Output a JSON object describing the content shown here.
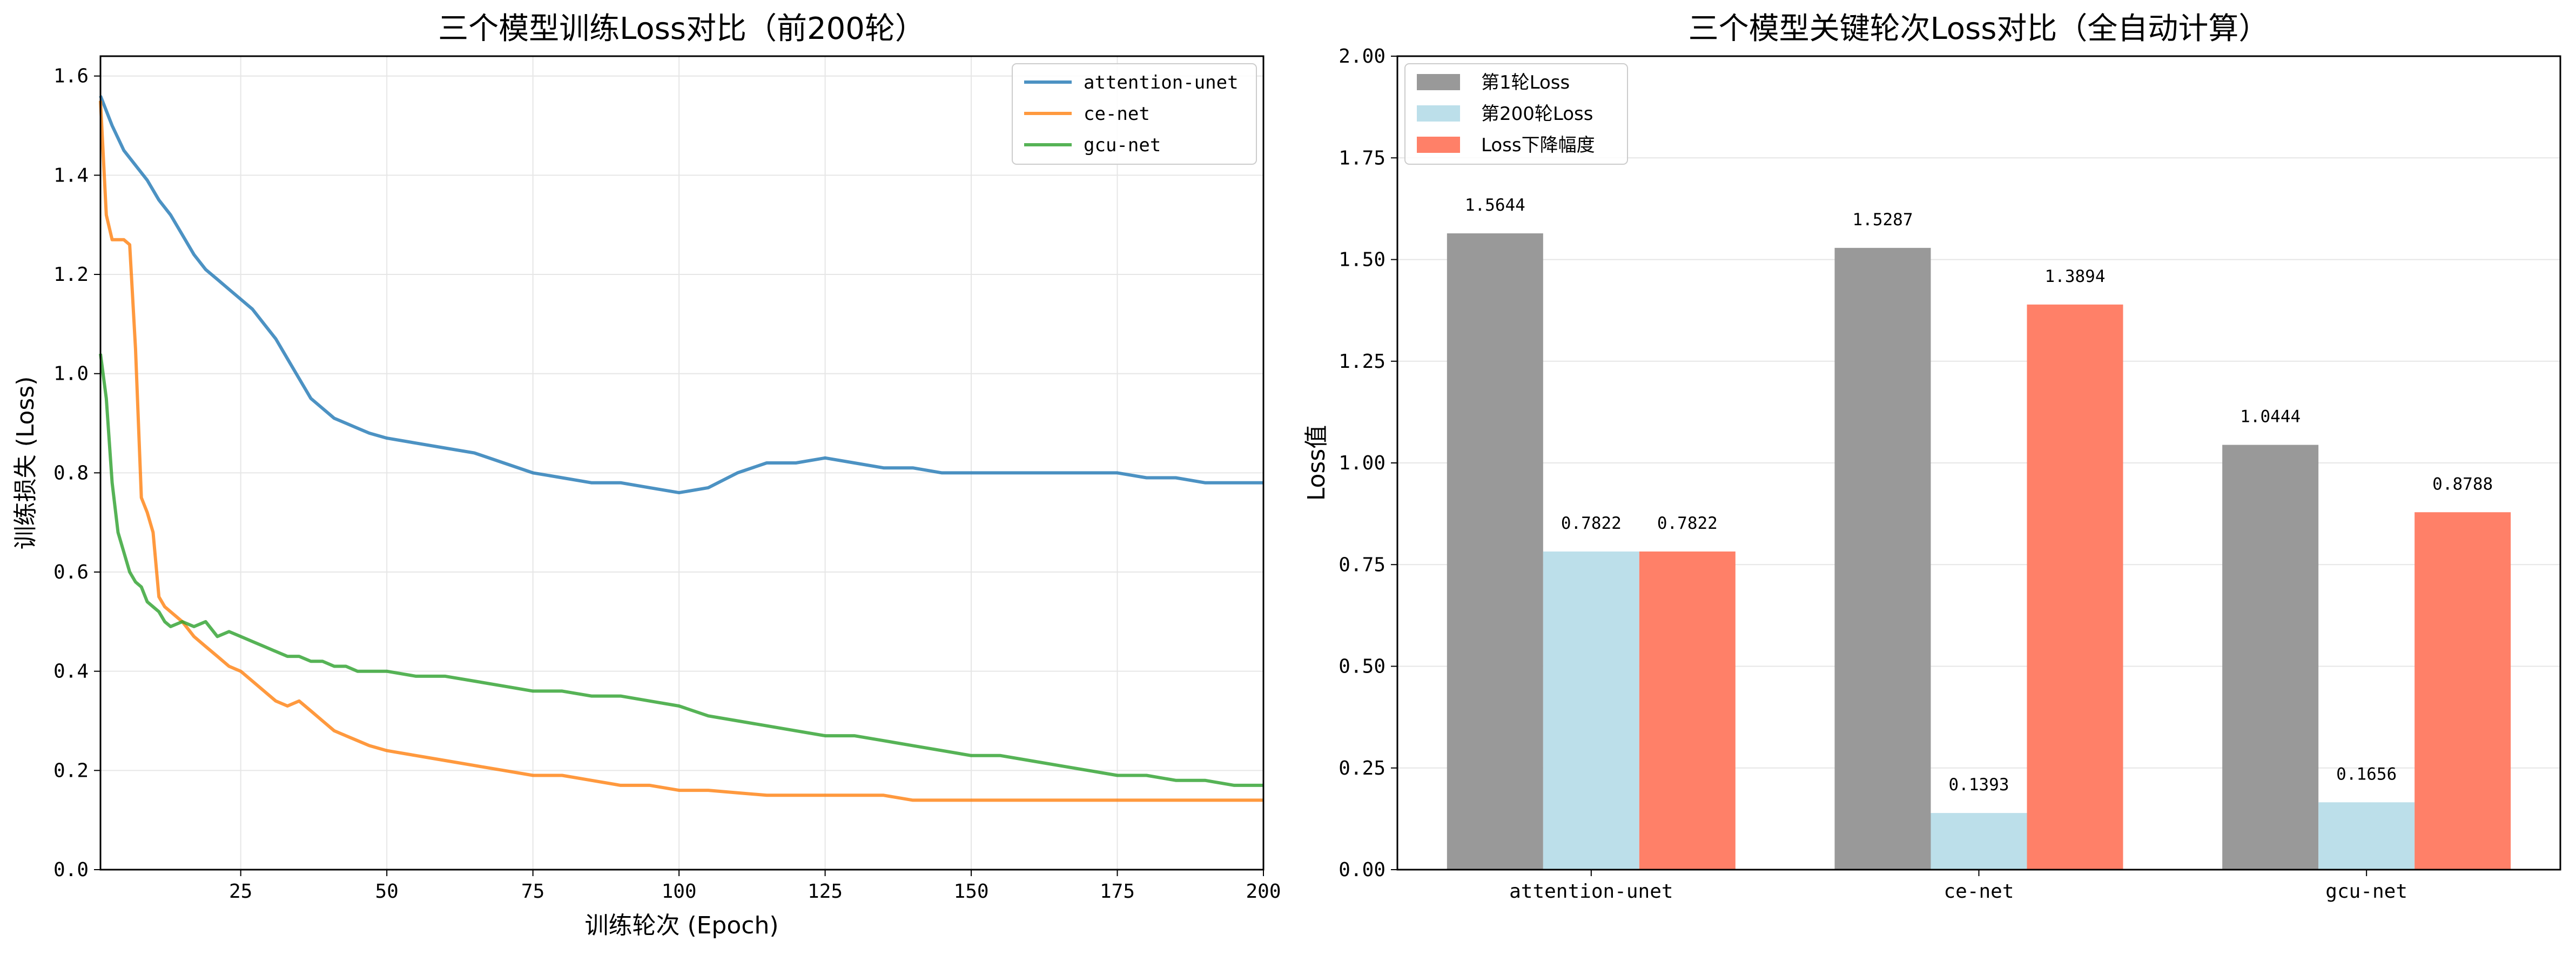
{
  "chart_data": [
    {
      "type": "line",
      "title": "三个模型训练Loss对比（前200轮）",
      "xlabel": "训练轮次 (Epoch)",
      "ylabel": "训练损失 (Loss)",
      "xlim": [
        1,
        200
      ],
      "ylim": [
        0,
        1.64
      ],
      "x_ticks": [
        25,
        50,
        75,
        100,
        125,
        150,
        175,
        200
      ],
      "y_ticks": [
        0.0,
        0.2,
        0.4,
        0.6,
        0.8,
        1.0,
        1.2,
        1.4,
        1.6
      ],
      "grid": true,
      "legend_position": "upper right",
      "series": [
        {
          "name": "attention-unet",
          "color": "#1f77b4",
          "points": [
            [
              1,
              1.56
            ],
            [
              3,
              1.5
            ],
            [
              5,
              1.45
            ],
            [
              7,
              1.42
            ],
            [
              9,
              1.39
            ],
            [
              11,
              1.35
            ],
            [
              13,
              1.32
            ],
            [
              15,
              1.28
            ],
            [
              17,
              1.24
            ],
            [
              19,
              1.21
            ],
            [
              21,
              1.19
            ],
            [
              23,
              1.17
            ],
            [
              25,
              1.15
            ],
            [
              27,
              1.13
            ],
            [
              29,
              1.1
            ],
            [
              31,
              1.07
            ],
            [
              33,
              1.03
            ],
            [
              35,
              0.99
            ],
            [
              37,
              0.95
            ],
            [
              39,
              0.93
            ],
            [
              41,
              0.91
            ],
            [
              43,
              0.9
            ],
            [
              45,
              0.89
            ],
            [
              47,
              0.88
            ],
            [
              50,
              0.87
            ],
            [
              55,
              0.86
            ],
            [
              60,
              0.85
            ],
            [
              65,
              0.84
            ],
            [
              70,
              0.82
            ],
            [
              75,
              0.8
            ],
            [
              80,
              0.79
            ],
            [
              85,
              0.78
            ],
            [
              90,
              0.78
            ],
            [
              95,
              0.77
            ],
            [
              100,
              0.76
            ],
            [
              105,
              0.77
            ],
            [
              110,
              0.8
            ],
            [
              115,
              0.82
            ],
            [
              120,
              0.82
            ],
            [
              125,
              0.83
            ],
            [
              130,
              0.82
            ],
            [
              135,
              0.81
            ],
            [
              140,
              0.81
            ],
            [
              145,
              0.8
            ],
            [
              150,
              0.8
            ],
            [
              155,
              0.8
            ],
            [
              160,
              0.8
            ],
            [
              165,
              0.8
            ],
            [
              170,
              0.8
            ],
            [
              175,
              0.8
            ],
            [
              180,
              0.79
            ],
            [
              185,
              0.79
            ],
            [
              190,
              0.78
            ],
            [
              195,
              0.78
            ],
            [
              200,
              0.78
            ]
          ]
        },
        {
          "name": "ce-net",
          "color": "#ff7f0e",
          "points": [
            [
              1,
              1.55
            ],
            [
              2,
              1.32
            ],
            [
              3,
              1.27
            ],
            [
              4,
              1.27
            ],
            [
              5,
              1.27
            ],
            [
              6,
              1.26
            ],
            [
              7,
              1.05
            ],
            [
              8,
              0.75
            ],
            [
              9,
              0.72
            ],
            [
              10,
              0.68
            ],
            [
              11,
              0.55
            ],
            [
              12,
              0.53
            ],
            [
              13,
              0.52
            ],
            [
              15,
              0.5
            ],
            [
              17,
              0.47
            ],
            [
              19,
              0.45
            ],
            [
              21,
              0.43
            ],
            [
              23,
              0.41
            ],
            [
              25,
              0.4
            ],
            [
              27,
              0.38
            ],
            [
              29,
              0.36
            ],
            [
              31,
              0.34
            ],
            [
              33,
              0.33
            ],
            [
              35,
              0.34
            ],
            [
              37,
              0.32
            ],
            [
              39,
              0.3
            ],
            [
              41,
              0.28
            ],
            [
              43,
              0.27
            ],
            [
              45,
              0.26
            ],
            [
              47,
              0.25
            ],
            [
              50,
              0.24
            ],
            [
              55,
              0.23
            ],
            [
              60,
              0.22
            ],
            [
              65,
              0.21
            ],
            [
              70,
              0.2
            ],
            [
              75,
              0.19
            ],
            [
              80,
              0.19
            ],
            [
              85,
              0.18
            ],
            [
              90,
              0.17
            ],
            [
              95,
              0.17
            ],
            [
              100,
              0.16
            ],
            [
              105,
              0.16
            ],
            [
              110,
              0.155
            ],
            [
              115,
              0.15
            ],
            [
              120,
              0.15
            ],
            [
              125,
              0.15
            ],
            [
              130,
              0.15
            ],
            [
              135,
              0.15
            ],
            [
              140,
              0.14
            ],
            [
              145,
              0.14
            ],
            [
              150,
              0.14
            ],
            [
              155,
              0.14
            ],
            [
              160,
              0.14
            ],
            [
              165,
              0.14
            ],
            [
              170,
              0.14
            ],
            [
              175,
              0.14
            ],
            [
              180,
              0.14
            ],
            [
              185,
              0.14
            ],
            [
              190,
              0.14
            ],
            [
              195,
              0.14
            ],
            [
              200,
              0.14
            ]
          ]
        },
        {
          "name": "gcu-net",
          "color": "#2ca02c",
          "points": [
            [
              1,
              1.04
            ],
            [
              2,
              0.95
            ],
            [
              3,
              0.78
            ],
            [
              4,
              0.68
            ],
            [
              5,
              0.64
            ],
            [
              6,
              0.6
            ],
            [
              7,
              0.58
            ],
            [
              8,
              0.57
            ],
            [
              9,
              0.54
            ],
            [
              10,
              0.53
            ],
            [
              11,
              0.52
            ],
            [
              12,
              0.5
            ],
            [
              13,
              0.49
            ],
            [
              15,
              0.5
            ],
            [
              17,
              0.49
            ],
            [
              19,
              0.5
            ],
            [
              21,
              0.47
            ],
            [
              23,
              0.48
            ],
            [
              25,
              0.47
            ],
            [
              27,
              0.46
            ],
            [
              29,
              0.45
            ],
            [
              31,
              0.44
            ],
            [
              33,
              0.43
            ],
            [
              35,
              0.43
            ],
            [
              37,
              0.42
            ],
            [
              39,
              0.42
            ],
            [
              41,
              0.41
            ],
            [
              43,
              0.41
            ],
            [
              45,
              0.4
            ],
            [
              47,
              0.4
            ],
            [
              50,
              0.4
            ],
            [
              55,
              0.39
            ],
            [
              60,
              0.39
            ],
            [
              65,
              0.38
            ],
            [
              70,
              0.37
            ],
            [
              75,
              0.36
            ],
            [
              80,
              0.36
            ],
            [
              85,
              0.35
            ],
            [
              90,
              0.35
            ],
            [
              95,
              0.34
            ],
            [
              100,
              0.33
            ],
            [
              105,
              0.31
            ],
            [
              110,
              0.3
            ],
            [
              115,
              0.29
            ],
            [
              120,
              0.28
            ],
            [
              125,
              0.27
            ],
            [
              130,
              0.27
            ],
            [
              135,
              0.26
            ],
            [
              140,
              0.25
            ],
            [
              145,
              0.24
            ],
            [
              150,
              0.23
            ],
            [
              155,
              0.23
            ],
            [
              160,
              0.22
            ],
            [
              165,
              0.21
            ],
            [
              170,
              0.2
            ],
            [
              175,
              0.19
            ],
            [
              180,
              0.19
            ],
            [
              185,
              0.18
            ],
            [
              190,
              0.18
            ],
            [
              195,
              0.17
            ],
            [
              200,
              0.17
            ]
          ]
        }
      ]
    },
    {
      "type": "bar",
      "title": "三个模型关键轮次Loss对比（全自动计算）",
      "xlabel": "",
      "ylabel": "Loss值",
      "ylim": [
        0,
        2.0
      ],
      "y_ticks": [
        0.0,
        0.25,
        0.5,
        0.75,
        1.0,
        1.25,
        1.5,
        1.75,
        2.0
      ],
      "grid": true,
      "legend_position": "upper left",
      "categories": [
        "attention-unet",
        "ce-net",
        "gcu-net"
      ],
      "series": [
        {
          "name": "第1轮Loss",
          "color": "#999999",
          "values": [
            1.5644,
            1.5287,
            1.0444
          ]
        },
        {
          "name": "第200轮Loss",
          "color": "#bcdfea",
          "values": [
            0.7822,
            0.1393,
            0.1656
          ]
        },
        {
          "name": "Loss下降幅度",
          "color": "#ff8068",
          "values": [
            0.7822,
            1.3894,
            0.8788
          ]
        }
      ]
    }
  ]
}
